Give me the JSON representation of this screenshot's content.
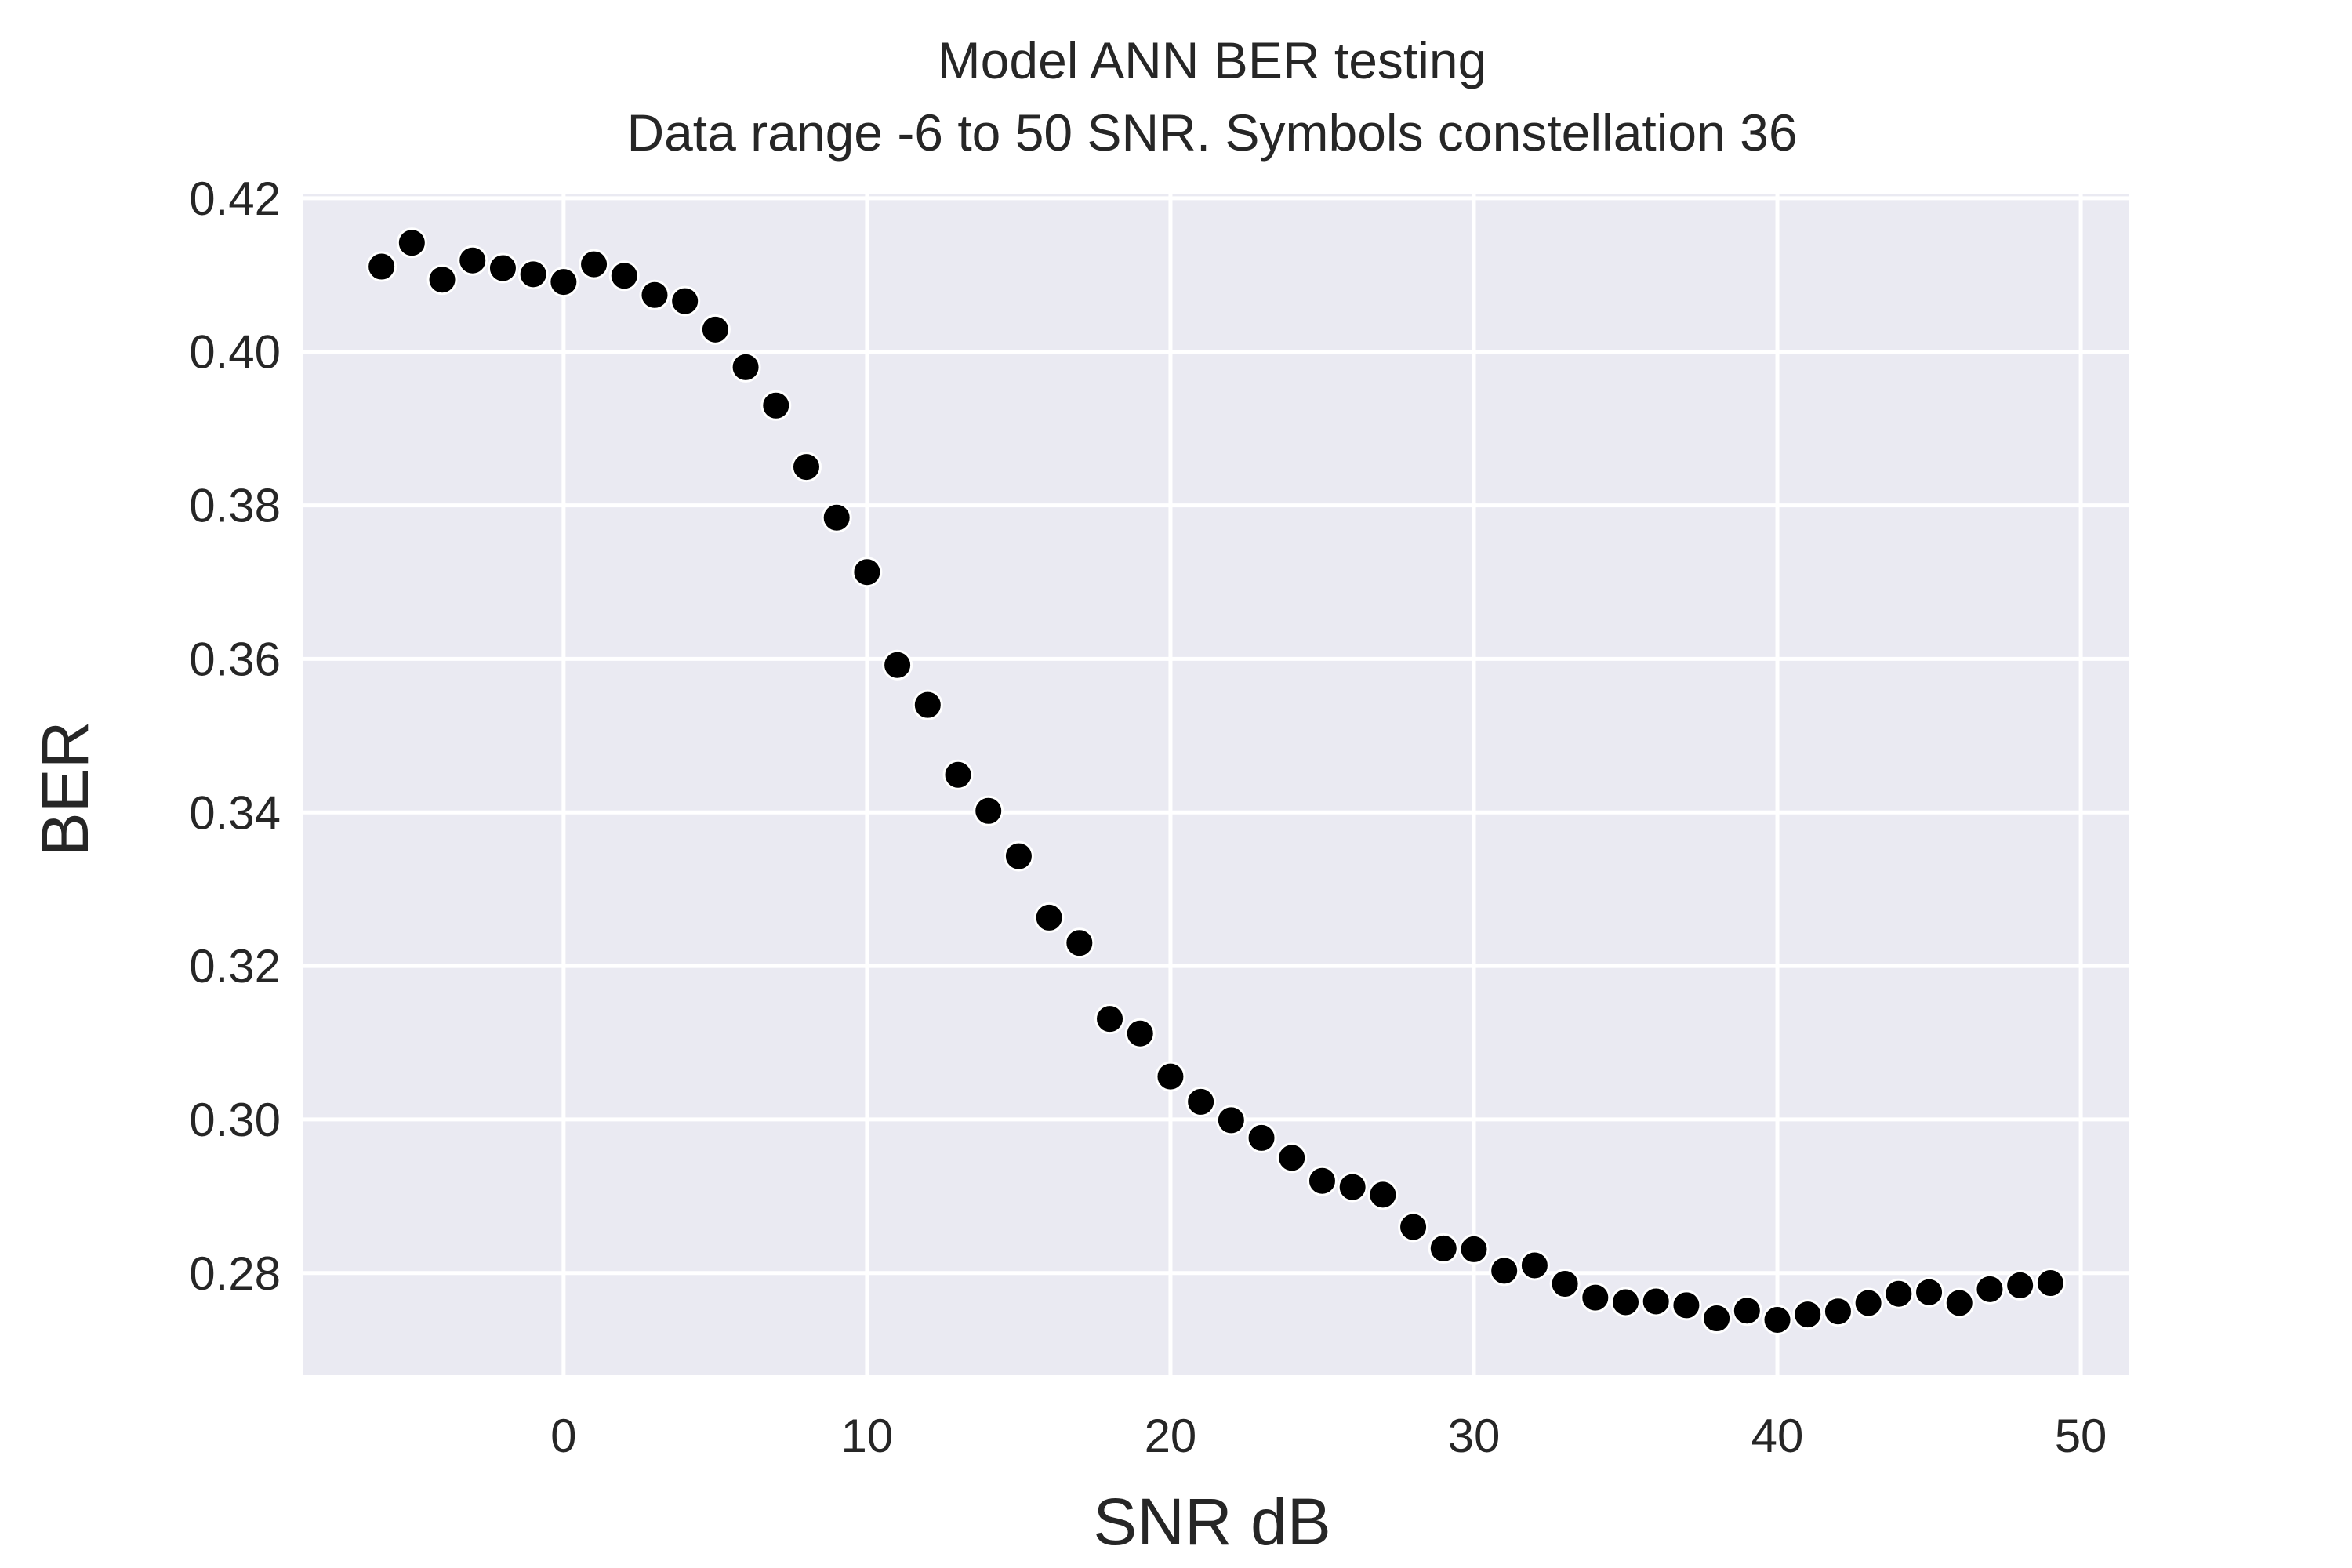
{
  "chart_data": {
    "type": "scatter",
    "title": "Model  ANN BER testing",
    "subtitle": "Data range -6 to 50 SNR. Symbols constellation 36",
    "xlabel": "SNR dB",
    "ylabel": "BER",
    "xlim": [
      -8.6,
      51.6
    ],
    "ylim": [
      0.2667,
      0.4205
    ],
    "xticks": [
      0,
      10,
      20,
      30,
      40,
      50
    ],
    "yticks": [
      0.28,
      0.3,
      0.32,
      0.34,
      0.36,
      0.38,
      0.4,
      0.42
    ],
    "xtick_labels": [
      "0",
      "10",
      "20",
      "30",
      "40",
      "50"
    ],
    "ytick_labels": [
      "0.28",
      "0.30",
      "0.32",
      "0.34",
      "0.36",
      "0.38",
      "0.40",
      "0.42"
    ],
    "grid": true,
    "legend": "none",
    "colors": {
      "background": "#eaeaf2",
      "grid": "#ffffff",
      "marker": "#000000",
      "marker_edge": "#ffffff"
    },
    "x": [
      -6,
      -5,
      -4,
      -3,
      -2,
      -1,
      0,
      1,
      2,
      3,
      4,
      5,
      6,
      7,
      8,
      9,
      10,
      11,
      12,
      13,
      14,
      15,
      16,
      17,
      18,
      19,
      20,
      21,
      22,
      23,
      24,
      25,
      26,
      27,
      28,
      29,
      30,
      31,
      32,
      33,
      34,
      35,
      36,
      37,
      38,
      39,
      40,
      41,
      42,
      43,
      44,
      45,
      46,
      47,
      48,
      49
    ],
    "y": [
      0.4111,
      0.4142,
      0.4094,
      0.4119,
      0.4109,
      0.4101,
      0.4091,
      0.4114,
      0.4099,
      0.4074,
      0.4066,
      0.4029,
      0.398,
      0.393,
      0.385,
      0.3784,
      0.3713,
      0.3592,
      0.354,
      0.3449,
      0.3402,
      0.3343,
      0.3263,
      0.323,
      0.3131,
      0.3112,
      0.3056,
      0.3023,
      0.2999,
      0.2976,
      0.295,
      0.292,
      0.2912,
      0.2902,
      0.286,
      0.2832,
      0.2831,
      0.2803,
      0.281,
      0.2786,
      0.2768,
      0.2762,
      0.2763,
      0.2758,
      0.2741,
      0.2751,
      0.2739,
      0.2746,
      0.275,
      0.2761,
      0.2773,
      0.2775,
      0.2761,
      0.2779,
      0.2784,
      0.2787
    ]
  }
}
